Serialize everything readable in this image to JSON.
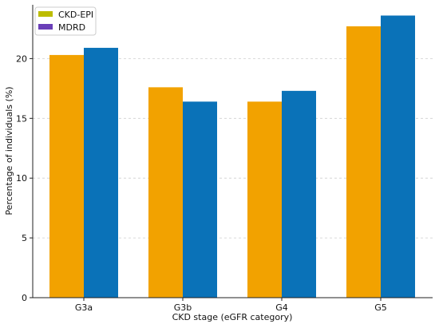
{
  "chart_data": {
    "type": "bar",
    "title": "",
    "xlabel": "CKD stage (eGFR category)",
    "ylabel": "Percentage of individuals (%)",
    "categories": [
      "G3a",
      "G3b",
      "G4",
      "G5"
    ],
    "series": [
      {
        "name": "CKD-EPI",
        "values": [
          20.3,
          17.6,
          16.4,
          22.7
        ],
        "color": "#f2a200",
        "legend_color": "#bcbc00"
      },
      {
        "name": "MDRD",
        "values": [
          20.9,
          16.4,
          17.3,
          23.6
        ],
        "color": "#0a72b8",
        "legend_color": "#6a3fb8"
      }
    ],
    "ylim": [
      0,
      24.5
    ],
    "yticks": [
      0,
      5,
      10,
      15,
      20
    ],
    "ytick_labels": [
      "0",
      "5",
      "10",
      "15",
      "20"
    ],
    "grid": true,
    "grid_axis": "y",
    "legend_position": "top-left"
  }
}
